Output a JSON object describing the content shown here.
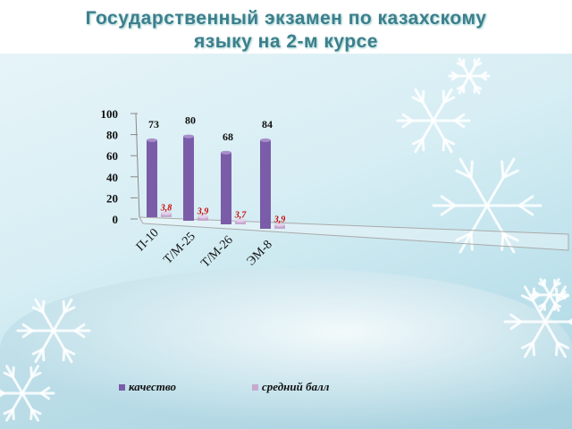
{
  "title_line1": "Государственный экзамен по казахскому",
  "title_line2": "языку на 2-м  курсе",
  "chart_data": {
    "type": "bar",
    "categories": [
      "П-10",
      "Т/М-25",
      "Т/М-26",
      "ЭМ-8"
    ],
    "series": [
      {
        "name": "качество",
        "values": [
          73,
          80,
          68,
          84
        ],
        "labels": [
          "73",
          "80",
          "68",
          "84"
        ],
        "color": "#7b5ca8"
      },
      {
        "name": "средний балл",
        "values": [
          3.8,
          3.9,
          3.7,
          3.9
        ],
        "labels": [
          "3,8",
          "3,9",
          "3,7",
          "3,9"
        ],
        "color": "#c6a9cf"
      }
    ],
    "yticks": [
      "0",
      "20",
      "40",
      "60",
      "80",
      "100"
    ],
    "ylim": [
      0,
      100
    ],
    "legend": "bottom"
  }
}
